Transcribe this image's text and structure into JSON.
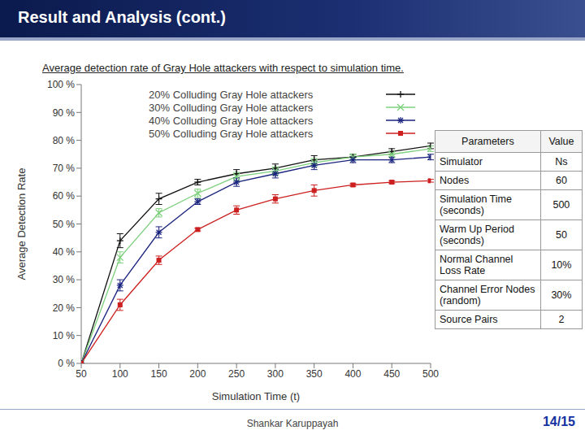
{
  "slide": {
    "title": "Result and Analysis (cont.)",
    "footer": "Shankar Karuppayah",
    "page": "14/15"
  },
  "chart_data": {
    "type": "line",
    "title": "Average detection rate of Gray Hole attackers with respect to simulation time.",
    "x_label": "Simulation Time (t)",
    "y_label": "Average Detection Rate",
    "x": [
      50,
      100,
      150,
      200,
      250,
      300,
      350,
      400,
      450,
      500
    ],
    "series": [
      {
        "name": "20% Colluding Gray Hole attackers",
        "color": "#111111",
        "marker": "plus",
        "values": [
          0,
          44,
          59,
          65,
          68,
          70,
          73,
          74,
          76,
          78
        ],
        "errors": [
          0,
          2.5,
          2,
          1,
          1.5,
          1.5,
          1.5,
          1,
          1,
          1
        ]
      },
      {
        "name": "30% Colluding Gray Hole attackers",
        "color": "#7ed07e",
        "marker": "x",
        "values": [
          0,
          38,
          54,
          61,
          67,
          69,
          72,
          74,
          75,
          77
        ],
        "errors": [
          0,
          2,
          1.5,
          1.5,
          1.5,
          1.5,
          1.5,
          1,
          1,
          1
        ]
      },
      {
        "name": "40% Colluding Gray Hole attackers",
        "color": "#1a237e",
        "marker": "asterisk",
        "values": [
          0,
          28,
          47,
          58,
          65,
          68,
          71,
          73,
          73,
          74
        ],
        "errors": [
          0,
          2,
          2,
          1,
          1.5,
          1.5,
          1.5,
          1,
          1,
          1
        ]
      },
      {
        "name": "50% Colluding Gray Hole attackers",
        "color": "#cc1f1f",
        "marker": "square",
        "values": [
          0,
          21,
          37,
          48,
          55,
          59,
          62,
          64,
          65,
          65.5
        ],
        "errors": [
          0,
          2,
          1.5,
          0.5,
          1.5,
          1.5,
          2,
          0.5,
          0.5,
          0.5
        ]
      }
    ],
    "xlim": [
      50,
      500
    ],
    "xticks": [
      50,
      100,
      150,
      200,
      250,
      300,
      350,
      400,
      450,
      500
    ],
    "ylim": [
      0,
      100
    ],
    "yticks": [
      {
        "value": 0,
        "label": "0 %"
      },
      {
        "value": 10,
        "label": "10 %"
      },
      {
        "value": 20,
        "label": "20 %"
      },
      {
        "value": 30,
        "label": "30 %"
      },
      {
        "value": 40,
        "label": "40 %"
      },
      {
        "value": 50,
        "label": "50 %"
      },
      {
        "value": 60,
        "label": "60 %"
      },
      {
        "value": 70,
        "label": "70 %"
      },
      {
        "value": 80,
        "label": "80 %"
      },
      {
        "value": 90,
        "label": "90 %"
      },
      {
        "value": 100,
        "label": "100 %"
      }
    ],
    "grid": false,
    "legend": "upper left"
  },
  "table": {
    "header": [
      "Parameters",
      "Value"
    ],
    "rows": [
      [
        "Simulator",
        "Ns"
      ],
      [
        "Nodes",
        "60"
      ],
      [
        "Simulation Time (seconds)",
        "500"
      ],
      [
        "Warm Up Period (seconds)",
        "50"
      ],
      [
        "Normal Channel Loss Rate",
        "10%"
      ],
      [
        "Channel Error Nodes (random)",
        "30%"
      ],
      [
        "Source Pairs",
        "2"
      ]
    ]
  }
}
